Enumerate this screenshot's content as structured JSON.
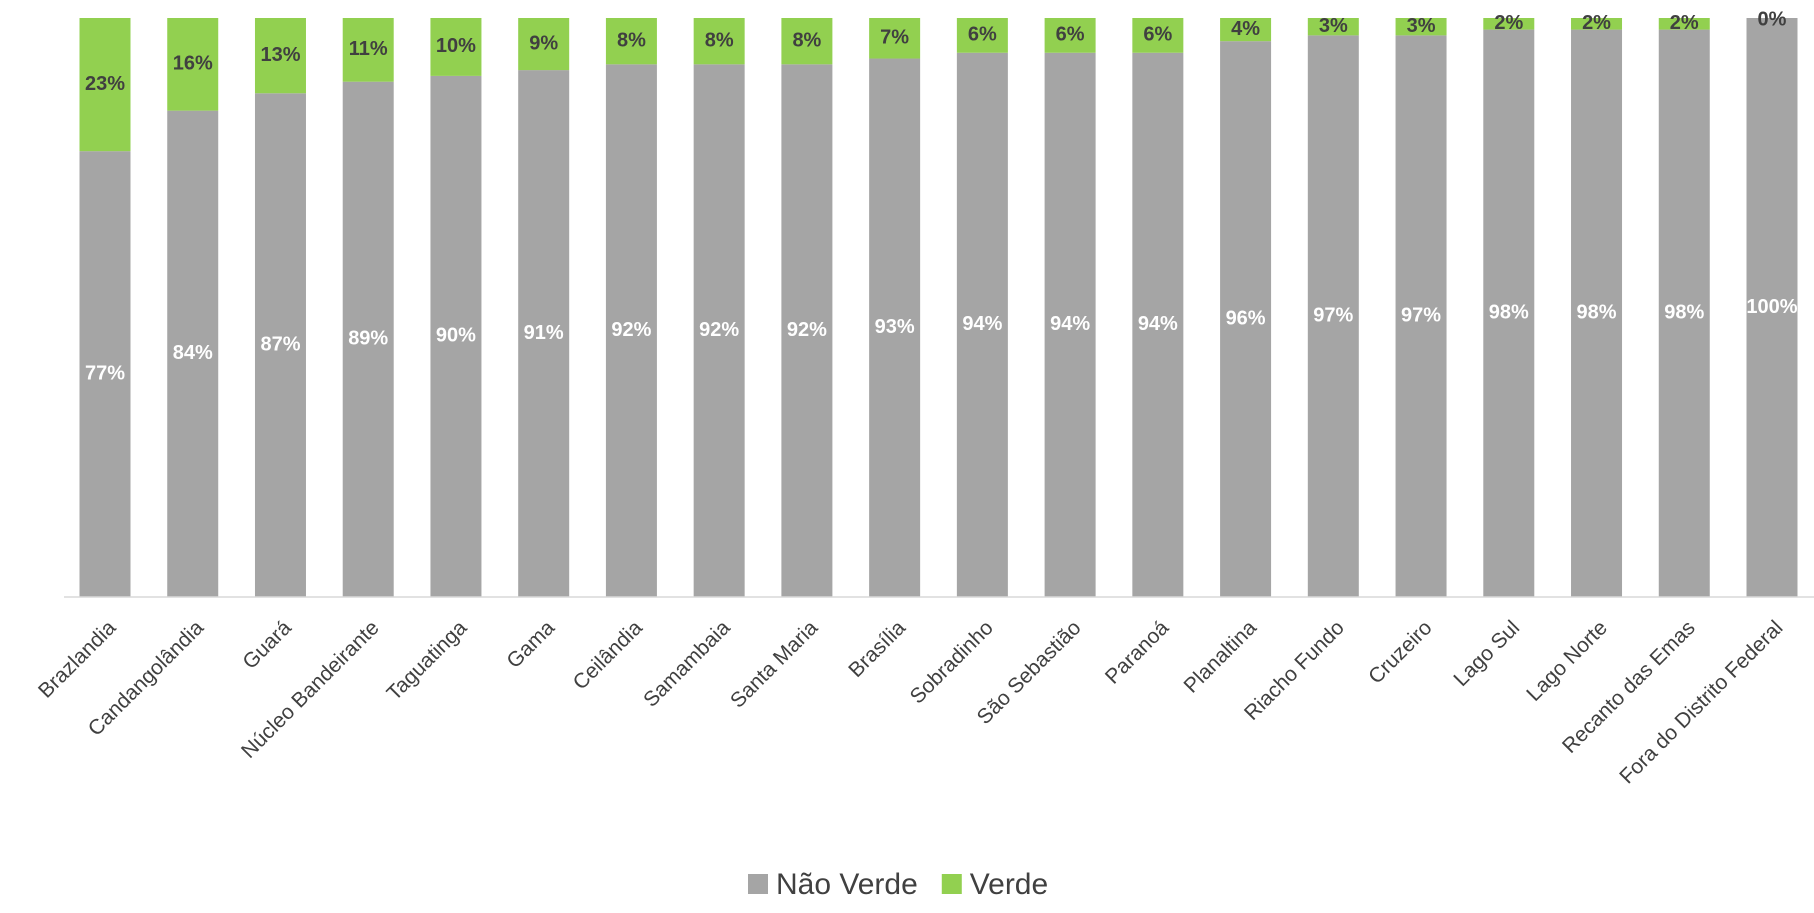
{
  "chart_data": {
    "type": "stacked_bar",
    "categories": [
      "Brazlandia",
      "Candangolândia",
      "Guará",
      "Núcleo Bandeirante",
      "Taguatinga",
      "Gama",
      "Ceilândia",
      "Samambaia",
      "Santa Maria",
      "Brasília",
      "Sobradinho",
      "São Sebastião",
      "Paranoá",
      "Planaltina",
      "Riacho Fundo",
      "Cruzeiro",
      "Lago Sul",
      "Lago Norte",
      "Recanto das Emas",
      "Fora do Distrito Federal"
    ],
    "series": [
      {
        "name": "Não Verde",
        "color": "#a5a5a5",
        "values": [
          77,
          84,
          87,
          89,
          90,
          91,
          92,
          92,
          92,
          93,
          94,
          94,
          94,
          96,
          97,
          97,
          98,
          98,
          98,
          100
        ],
        "value_labels": [
          "77%",
          "84%",
          "87%",
          "89%",
          "90%",
          "91%",
          "92%",
          "92%",
          "92%",
          "93%",
          "94%",
          "94%",
          "94%",
          "96%",
          "97%",
          "97%",
          "98%",
          "98%",
          "98%",
          "100%"
        ]
      },
      {
        "name": "Verde",
        "color": "#92d050",
        "values": [
          23,
          16,
          13,
          11,
          10,
          9,
          8,
          8,
          8,
          7,
          6,
          6,
          6,
          4,
          3,
          3,
          2,
          2,
          2,
          0
        ],
        "value_labels": [
          "23%",
          "16%",
          "13%",
          "11%",
          "10%",
          "9%",
          "8%",
          "8%",
          "8%",
          "7%",
          "6%",
          "6%",
          "6%",
          "4%",
          "3%",
          "3%",
          "2%",
          "2%",
          "2%",
          "0%"
        ]
      }
    ],
    "ylim": [
      0,
      100
    ],
    "legend": "bottom"
  }
}
